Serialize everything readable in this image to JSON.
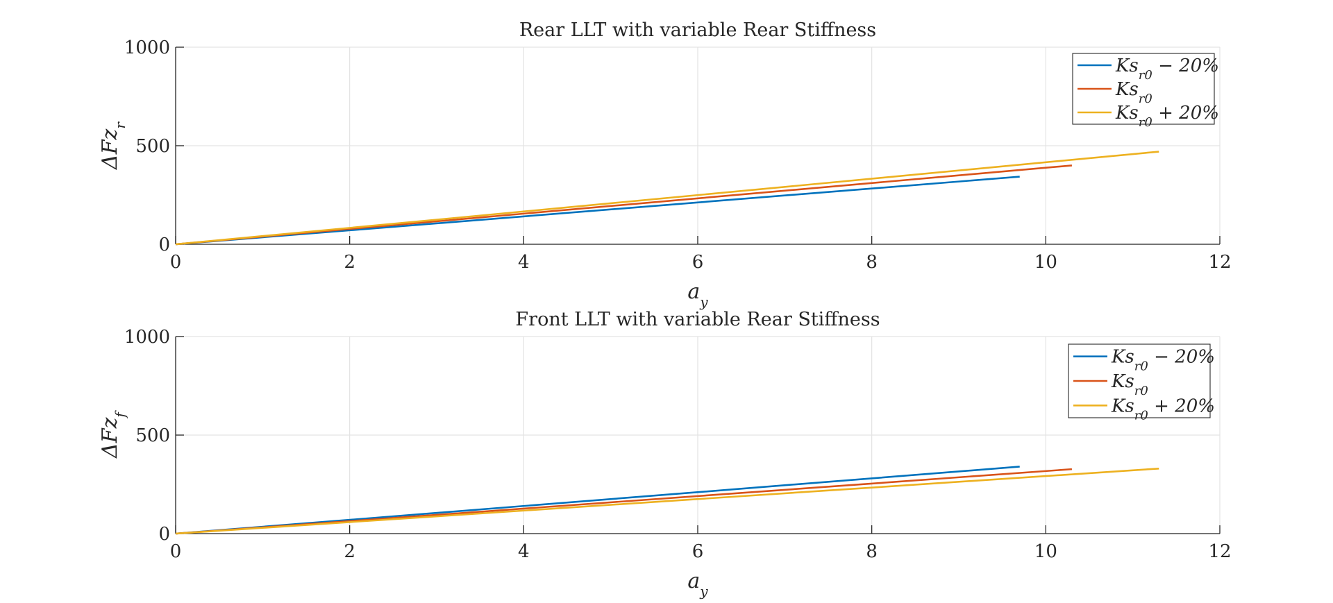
{
  "chart_data": [
    {
      "type": "line",
      "title": "Rear LLT with variable Rear Stiffness",
      "xlabel": "a_y",
      "ylabel": "ΔFz_r",
      "xlim": [
        0,
        12
      ],
      "ylim": [
        0,
        1000
      ],
      "xticks": [
        "0",
        "2",
        "4",
        "6",
        "8",
        "10",
        "12"
      ],
      "yticks": [
        "0",
        "500",
        "1000"
      ],
      "grid": true,
      "legend_position": "top-right",
      "series": [
        {
          "name": "Ks_r0 − 20%",
          "color": "#0072BD",
          "x": [
            0,
            9.7
          ],
          "y": [
            0,
            343
          ]
        },
        {
          "name": "Ks_r0",
          "color": "#D95319",
          "x": [
            0,
            10.3
          ],
          "y": [
            0,
            400
          ]
        },
        {
          "name": "Ks_r0 + 20%",
          "color": "#EDB120",
          "x": [
            0,
            11.3
          ],
          "y": [
            0,
            470
          ]
        }
      ]
    },
    {
      "type": "line",
      "title": "Front LLT with variable Rear Stiffness",
      "xlabel": "a_y",
      "ylabel": "ΔFz_f",
      "xlim": [
        0,
        12
      ],
      "ylim": [
        0,
        1000
      ],
      "xticks": [
        "0",
        "2",
        "4",
        "6",
        "8",
        "10",
        "12"
      ],
      "yticks": [
        "0",
        "500",
        "1000"
      ],
      "grid": true,
      "legend_position": "top-right",
      "series": [
        {
          "name": "Ks_r0 − 20%",
          "color": "#0072BD",
          "x": [
            0,
            9.7
          ],
          "y": [
            0,
            340
          ]
        },
        {
          "name": "Ks_r0",
          "color": "#D95319",
          "x": [
            0,
            10.3
          ],
          "y": [
            0,
            327
          ]
        },
        {
          "name": "Ks_r0 + 20%",
          "color": "#EDB120",
          "x": [
            0,
            11.3
          ],
          "y": [
            0,
            330
          ]
        }
      ]
    }
  ]
}
